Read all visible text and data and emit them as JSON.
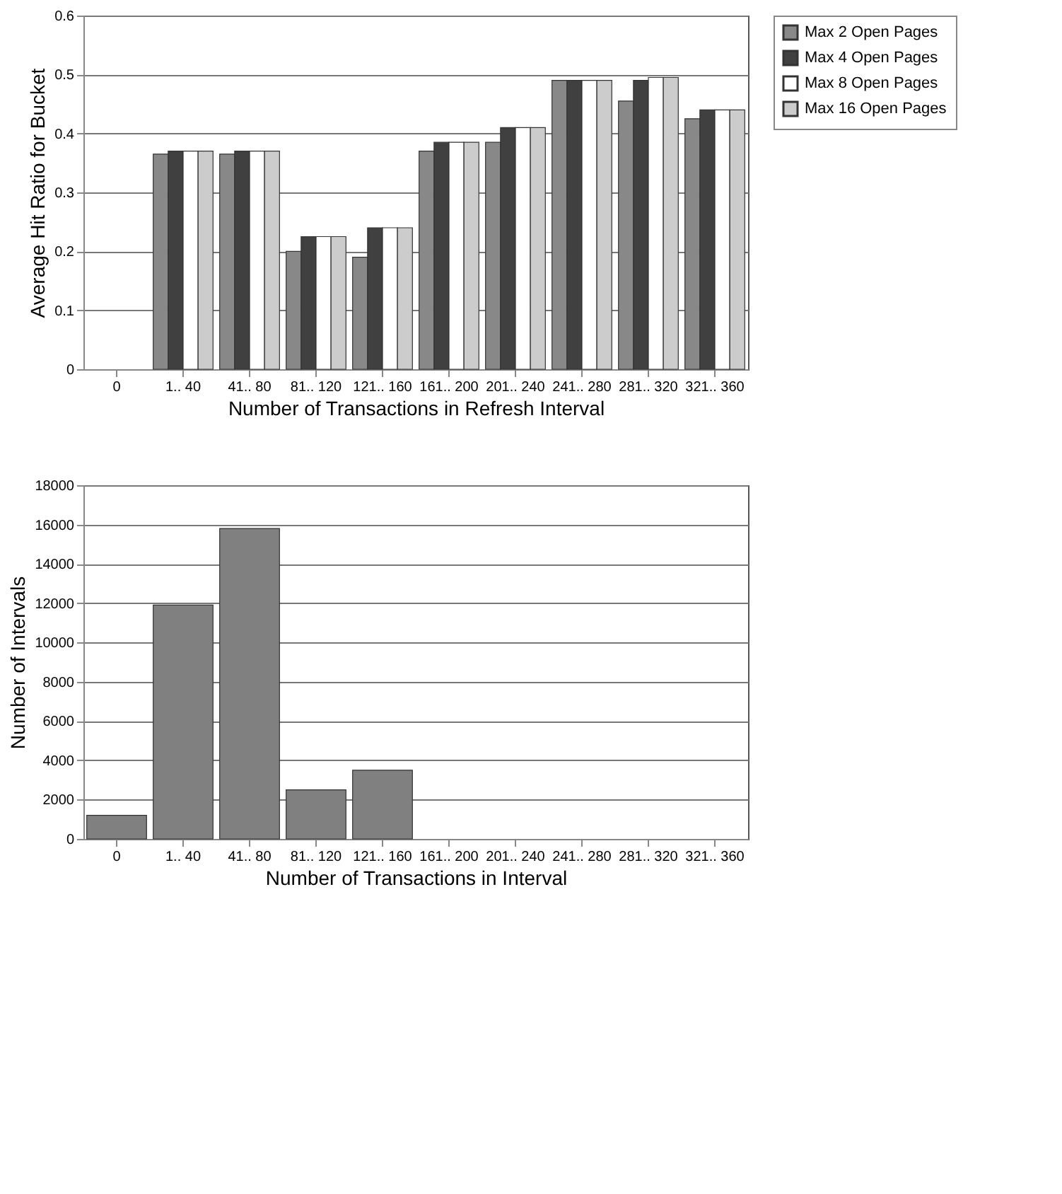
{
  "chart_data": [
    {
      "type": "bar",
      "xlabel": "Number of Transactions in Refresh Interval",
      "ylabel": "Average Hit Ratio for Bucket",
      "categories": [
        "0",
        "1.. 40",
        "41.. 80",
        "81.. 120",
        "121.. 160",
        "161.. 200",
        "201.. 240",
        "241.. 280",
        "281.. 320",
        "321.. 360"
      ],
      "series": [
        {
          "name": "Max 2 Open Pages",
          "color": "#888888",
          "values": [
            null,
            0.365,
            0.365,
            0.2,
            0.19,
            0.37,
            0.385,
            0.49,
            0.455,
            0.425
          ]
        },
        {
          "name": "Max 4 Open Pages",
          "color": "#404040",
          "values": [
            null,
            0.37,
            0.37,
            0.225,
            0.24,
            0.385,
            0.41,
            0.49,
            0.49,
            0.44
          ]
        },
        {
          "name": "Max 8 Open Pages",
          "color": "#ffffff",
          "values": [
            null,
            0.37,
            0.37,
            0.225,
            0.24,
            0.385,
            0.41,
            0.49,
            0.495,
            0.44
          ]
        },
        {
          "name": "Max 16 Open Pages",
          "color": "#cccccc",
          "values": [
            null,
            0.37,
            0.37,
            0.225,
            0.24,
            0.385,
            0.41,
            0.49,
            0.495,
            0.44
          ]
        }
      ],
      "ylim": [
        0,
        0.6
      ],
      "yticks": [
        0,
        0.1,
        0.2,
        0.3,
        0.4,
        0.5,
        0.6
      ],
      "grid": "y",
      "legend": "right"
    },
    {
      "type": "bar",
      "xlabel": "Number of Transactions in Interval",
      "ylabel": "Number of Intervals",
      "categories": [
        "0",
        "1.. 40",
        "41.. 80",
        "81.. 120",
        "121.. 160",
        "161.. 200",
        "201.. 240",
        "241.. 280",
        "281.. 320",
        "321.. 360"
      ],
      "series": [
        {
          "color": "#808080",
          "values": [
            1200,
            11900,
            15800,
            2500,
            3500,
            null,
            null,
            null,
            null,
            null
          ]
        }
      ],
      "ylim": [
        0,
        18000
      ],
      "yticks": [
        0,
        2000,
        4000,
        6000,
        8000,
        10000,
        12000,
        14000,
        16000,
        18000
      ],
      "grid": "y",
      "legend": false
    }
  ]
}
